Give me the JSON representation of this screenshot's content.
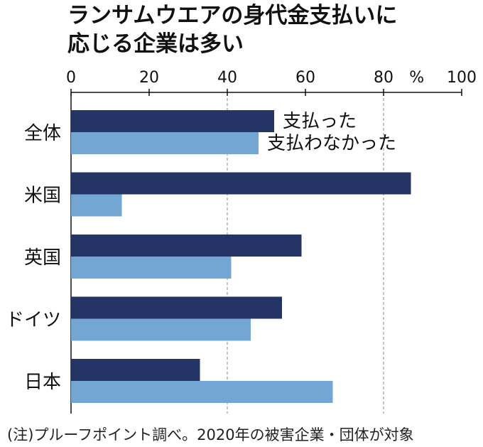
{
  "title_lines": [
    "ランサムウエアの身代金支払いに",
    "応じる企業は多い"
  ],
  "note": "(注)プルーフポイント調べ。2020年の被害企業・団体が対象",
  "colors": {
    "paid": "#243465",
    "not_paid": "#74a6d4",
    "grid": "#888888",
    "axis": "#111111"
  },
  "chart_data": {
    "type": "bar",
    "orientation": "horizontal",
    "title": "ランサムウエアの身代金支払いに応じる企業は多い",
    "unit": "%",
    "xlim": [
      0,
      100
    ],
    "xticks": [
      0,
      20,
      40,
      60,
      80,
      100
    ],
    "categories": [
      "全体",
      "米国",
      "英国",
      "ドイツ",
      "日本"
    ],
    "series": [
      {
        "name": "支払った",
        "values": [
          52,
          87,
          59,
          54,
          33
        ]
      },
      {
        "name": "支払わなかった",
        "values": [
          48,
          13,
          41,
          46,
          67
        ]
      }
    ],
    "legend": "inline-right-of-first-category"
  }
}
